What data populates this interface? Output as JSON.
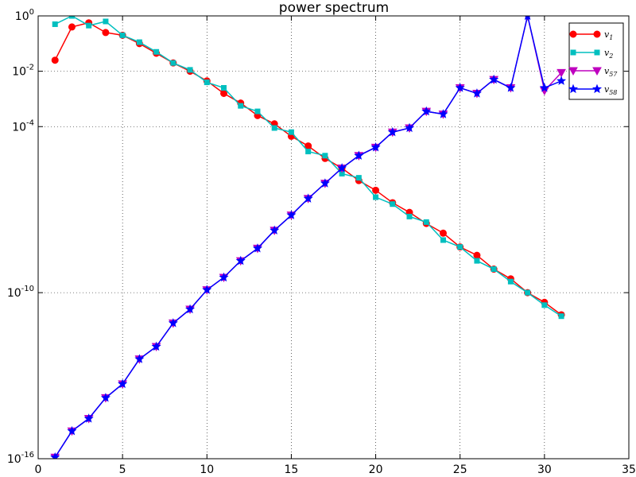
{
  "chart_data": {
    "type": "line",
    "title": "power spectrum",
    "xlabel": "",
    "ylabel": "",
    "xlim": [
      0,
      35
    ],
    "ylim_exponent": [
      -16,
      0
    ],
    "yscale": "log",
    "grid": true,
    "legend_position": "top-right",
    "x_ticks": [
      "0",
      "5",
      "10",
      "15",
      "20",
      "25",
      "30",
      "35"
    ],
    "y_ticks": [
      {
        "exp": 0,
        "base": "10",
        "sup": "0"
      },
      {
        "exp": -2,
        "base": "10",
        "sup": "-2"
      },
      {
        "exp": -4,
        "base": "10",
        "sup": "-4"
      },
      {
        "exp": -10,
        "base": "10",
        "sup": "-10"
      },
      {
        "exp": -16,
        "base": "10",
        "sup": "-16"
      }
    ],
    "x": [
      1,
      2,
      3,
      4,
      5,
      6,
      7,
      8,
      9,
      10,
      11,
      12,
      13,
      14,
      15,
      16,
      17,
      18,
      19,
      20,
      21,
      22,
      23,
      24,
      25,
      26,
      27,
      28,
      29,
      30,
      31
    ],
    "series": [
      {
        "name": "v",
        "sub": "1",
        "color": "#ff0000",
        "marker": "circle",
        "log10_values": [
          -1.6,
          -0.4,
          -0.25,
          -0.6,
          -0.7,
          -1.0,
          -1.35,
          -1.7,
          -2.0,
          -2.35,
          -2.8,
          -3.15,
          -3.6,
          -3.9,
          -4.35,
          -4.7,
          -5.15,
          -5.5,
          -5.95,
          -6.3,
          -6.75,
          -7.1,
          -7.5,
          -7.85,
          -8.35,
          -8.65,
          -9.15,
          -9.5,
          -10.0,
          -10.35,
          -10.8
        ]
      },
      {
        "name": "v",
        "sub": "2",
        "color": "#00bfbf",
        "marker": "square",
        "log10_values": [
          -0.3,
          0.0,
          -0.35,
          -0.2,
          -0.7,
          -0.95,
          -1.3,
          -1.7,
          -1.95,
          -2.4,
          -2.6,
          -3.25,
          -3.45,
          -4.05,
          -4.2,
          -4.9,
          -5.05,
          -5.7,
          -5.85,
          -6.55,
          -6.8,
          -7.25,
          -7.45,
          -8.1,
          -8.35,
          -8.85,
          -9.15,
          -9.6,
          -10.0,
          -10.45,
          -10.85
        ]
      },
      {
        "name": "v",
        "sub": "57",
        "color": "#bf00bf",
        "marker": "triangle-down",
        "log10_values": [
          -15.95,
          -15.0,
          -14.55,
          -13.8,
          -13.3,
          -12.4,
          -11.95,
          -11.1,
          -10.6,
          -9.9,
          -9.45,
          -8.85,
          -8.4,
          -7.75,
          -7.2,
          -6.6,
          -6.05,
          -5.5,
          -5.05,
          -4.75,
          -4.2,
          -4.05,
          -3.45,
          -3.55,
          -2.6,
          -2.8,
          -2.3,
          -2.6,
          0.0,
          -2.7,
          -2.05
        ]
      },
      {
        "name": "v",
        "sub": "58",
        "color": "#0000ff",
        "marker": "star",
        "log10_values": [
          -15.95,
          -15.0,
          -14.55,
          -13.8,
          -13.3,
          -12.4,
          -11.95,
          -11.1,
          -10.6,
          -9.9,
          -9.45,
          -8.85,
          -8.4,
          -7.75,
          -7.2,
          -6.6,
          -6.05,
          -5.5,
          -5.05,
          -4.75,
          -4.2,
          -4.05,
          -3.45,
          -3.55,
          -2.6,
          -2.8,
          -2.3,
          -2.6,
          0.0,
          -2.6,
          -2.35
        ]
      }
    ]
  }
}
